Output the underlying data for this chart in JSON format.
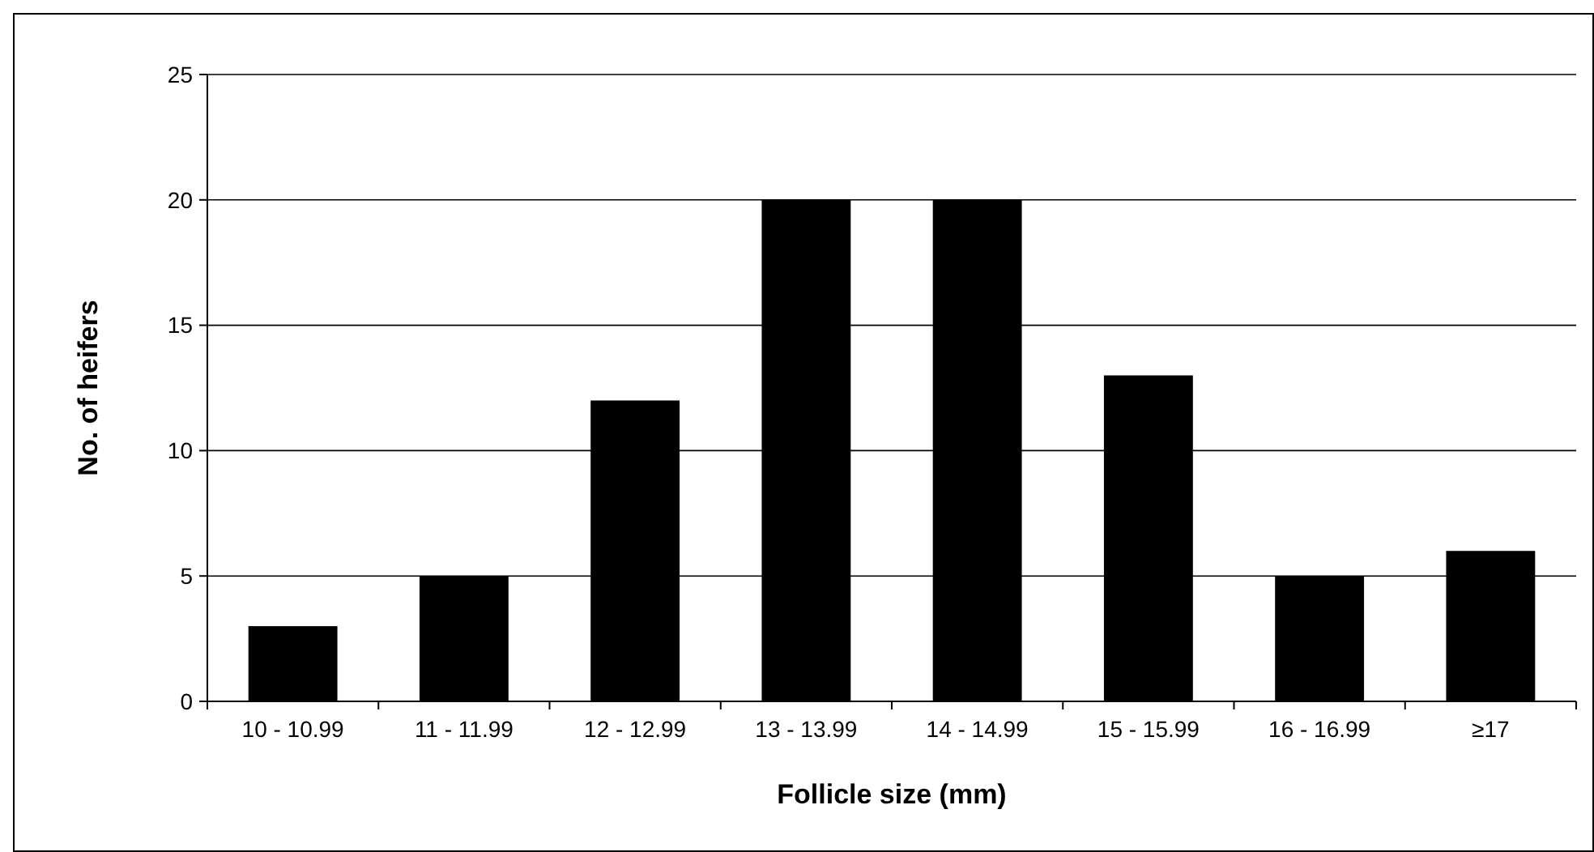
{
  "chart_data": {
    "type": "bar",
    "xlabel": "Follicle size (mm)",
    "ylabel": "No. of heifers",
    "categories": [
      "10 - 10.99",
      "11 - 11.99",
      "12 - 12.99",
      "13 - 13.99",
      "14 - 14.99",
      "15 - 15.99",
      "16 - 16.99",
      "≥17"
    ],
    "values": [
      3,
      5,
      12,
      20,
      20,
      13,
      5,
      6
    ],
    "color": "#000000",
    "ylim": [
      0,
      25
    ],
    "yticks": [
      0,
      5,
      10,
      15,
      20,
      25
    ],
    "grid": "y"
  }
}
